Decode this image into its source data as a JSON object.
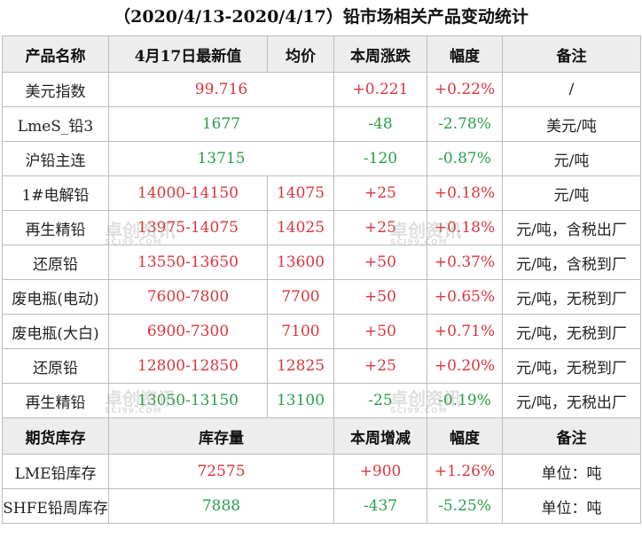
{
  "title": "（2020/4/13-2020/4/17）铅市场相关产品变动统计",
  "header1": [
    "产品名称",
    "4月17日最新值",
    "均价",
    "本周涨跌",
    "幅度",
    "备注"
  ],
  "prices": [
    {
      "name": "美元指数",
      "latest": "99.716",
      "avg": "",
      "change": "+0.221",
      "pct": "+0.22%",
      "note": "/",
      "color": "red"
    },
    {
      "name": "LmeS_铅3",
      "latest": "1677",
      "avg": "",
      "change": "-48",
      "pct": "-2.78%",
      "note": "美元/吨",
      "color": "green"
    },
    {
      "name": "沪铅主连",
      "latest": "13715",
      "avg": "",
      "change": "-120",
      "pct": "-0.87%",
      "note": "元/吨",
      "color": "green"
    },
    {
      "name": "1#电解铅",
      "latest": "14000-14150",
      "avg": "14075",
      "change": "+25",
      "pct": "+0.18%",
      "note": "元/吨",
      "color": "red"
    },
    {
      "name": "再生精铅",
      "latest": "13975-14075",
      "avg": "14025",
      "change": "+25",
      "pct": "+0.18%",
      "note": "元/吨，含税出厂",
      "color": "red"
    },
    {
      "name": "还原铅",
      "latest": "13550-13650",
      "avg": "13600",
      "change": "+50",
      "pct": "+0.37%",
      "note": "元/吨，含税到厂",
      "color": "red"
    },
    {
      "name": "废电瓶(电动)",
      "latest": "7600-7800",
      "avg": "7700",
      "change": "+50",
      "pct": "+0.65%",
      "note": "元/吨，无税到厂",
      "color": "red"
    },
    {
      "name": "废电瓶(大白)",
      "latest": "6900-7300",
      "avg": "7100",
      "change": "+50",
      "pct": "+0.71%",
      "note": "元/吨，无税到厂",
      "color": "red"
    },
    {
      "name": "还原铅",
      "latest": "12800-12850",
      "avg": "12825",
      "change": "+25",
      "pct": "+0.20%",
      "note": "元/吨，无税到厂",
      "color": "red"
    },
    {
      "name": "再生精铅",
      "latest": "13050-13150",
      "avg": "13100",
      "change": "-25",
      "pct": "-0.19%",
      "note": "元/吨，无税出厂",
      "color": "green"
    }
  ],
  "header2": [
    "期货库存",
    "库存量",
    "本周增减",
    "幅度",
    "备注"
  ],
  "inventory": [
    {
      "name": "LME铅库存",
      "qty": "72575",
      "change": "+900",
      "pct": "+1.26%",
      "note": "单位：吨",
      "color": "red"
    },
    {
      "name": "SHFE铅周库存",
      "qty": "7888",
      "change": "-437",
      "pct": "-5.25%",
      "note": "单位：吨",
      "color": "green"
    }
  ],
  "watermark": {
    "cn": "卓创资讯",
    "en": "SCI99.COM"
  }
}
